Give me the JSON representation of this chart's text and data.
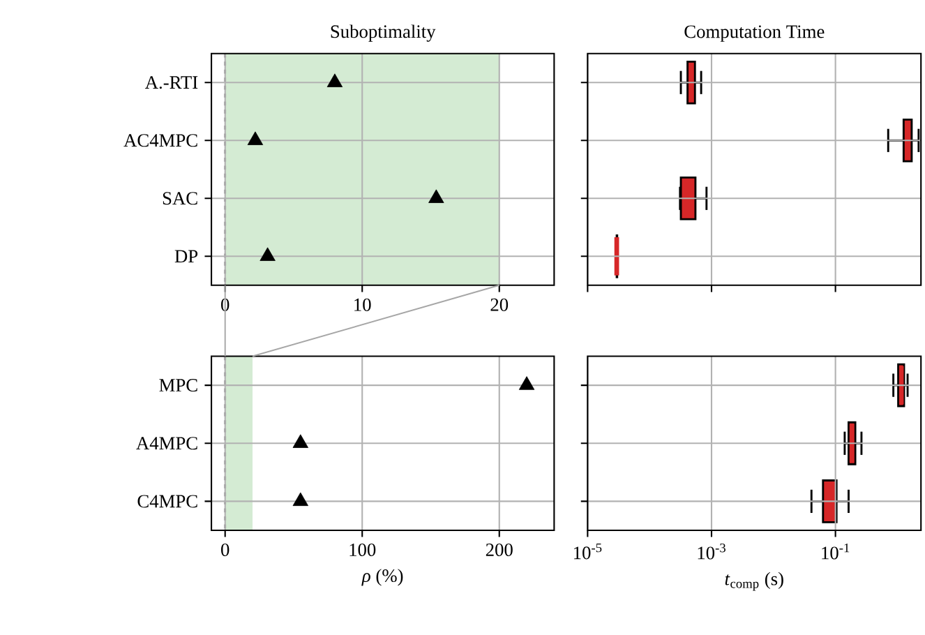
{
  "chart_data": [
    {
      "type": "scatter",
      "orientation": "horizontal",
      "title": "Suboptimality",
      "categories": [
        "A.-RTI",
        "AC4MPC",
        "SAC",
        "DP"
      ],
      "series": [
        {
          "color": "#000000",
          "values": [
            8.0,
            2.2,
            15.4,
            3.1
          ]
        }
      ],
      "marker": "triangle",
      "xlim": [
        -1,
        24
      ],
      "xticks": [
        0,
        10,
        20
      ],
      "grid": true,
      "ref_lines": [
        {
          "axis": "x",
          "value": 0,
          "color": "#808080",
          "line_style": "dashed"
        }
      ],
      "bands": [
        {
          "axis": "x",
          "from": 0,
          "to": 20,
          "color": "#d4ebd3"
        }
      ]
    },
    {
      "type": "box",
      "orientation": "horizontal",
      "title": "Computation Time",
      "categories": [
        null,
        null,
        null,
        null
      ],
      "series": [
        {
          "color": "#d62728",
          "boxes": [
            {
              "low": 0.00032,
              "q1": 0.00041,
              "median": 0.00047,
              "q3": 0.00054,
              "high": 0.00068
            },
            {
              "low": 0.71,
              "q1": 1.26,
              "median": 1.48,
              "q3": 1.7,
              "high": 2.2
            },
            {
              "low": 0.00031,
              "q1": 0.00032,
              "median": 0.00037,
              "q3": 0.00055,
              "high": 0.00083
            },
            {
              "low": 2.9e-05,
              "q1": 2.95e-05,
              "median": 2.95e-05,
              "q3": 3e-05,
              "high": 3e-05
            }
          ]
        }
      ],
      "log": "x",
      "xlim": [
        1e-05,
        2.4
      ],
      "xticks": [
        {
          "value": 1e-05,
          "label": null
        },
        {
          "value": 0.001,
          "label": null
        },
        {
          "value": 0.1,
          "label": null
        }
      ],
      "grid": true,
      "tick_labels": false
    },
    {
      "type": "scatter",
      "orientation": "horizontal",
      "xlabel": "*ρ* (%)",
      "categories": [
        "MPC",
        "A4MPC",
        "C4MPC"
      ],
      "series": [
        {
          "color": "#000000",
          "values": [
            220,
            55,
            55
          ]
        }
      ],
      "marker": "triangle",
      "xlim": [
        -10,
        240
      ],
      "xticks": [
        0,
        100,
        200
      ],
      "grid": true,
      "ref_lines": [
        {
          "axis": "x",
          "value": 0,
          "color": "#808080",
          "line_style": "dashed"
        }
      ],
      "bands": [
        {
          "axis": "x",
          "from": 0,
          "to": 20,
          "color": "#d4ebd3"
        }
      ]
    },
    {
      "type": "box",
      "orientation": "horizontal",
      "xlabel": "*t*$_{comp}$ (s)",
      "categories": [
        null,
        null,
        null
      ],
      "series": [
        {
          "color": "#d62728",
          "boxes": [
            {
              "low": 0.86,
              "q1": 1.03,
              "median": 1.16,
              "q3": 1.28,
              "high": 1.46
            },
            {
              "low": 0.141,
              "q1": 0.163,
              "median": 0.184,
              "q3": 0.209,
              "high": 0.263
            },
            {
              "low": 0.041,
              "q1": 0.063,
              "median": 0.078,
              "q3": 0.104,
              "high": 0.163
            }
          ]
        }
      ],
      "log": "x",
      "xlim": [
        1e-05,
        2.4
      ],
      "xticks": [
        {
          "value": 1e-05,
          "label": "10$^{-5}$"
        },
        {
          "value": 0.001,
          "label": "10$^{-3}$"
        },
        {
          "value": 0.1,
          "label": "10$^{-1}$"
        }
      ],
      "grid": true,
      "tick_labels": "x"
    }
  ]
}
